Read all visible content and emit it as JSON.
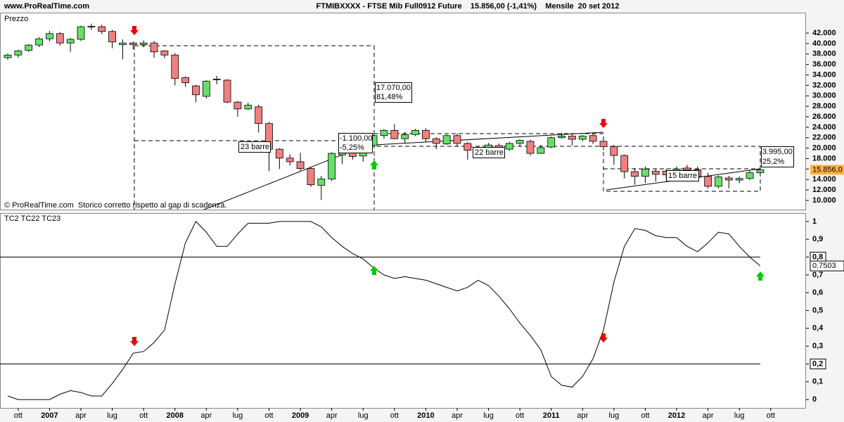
{
  "header": {
    "site": "www.ProRealTime.com",
    "title": "FTMIBXXXX - FTSE Mib Full0912 Future    15.856,00 (-1,41%)    Mensile  20 set 2012"
  },
  "chart_data": [
    {
      "type": "candlestick",
      "title": "Prezzo",
      "note": "© ProRealTime.com  Storico corretto rispetto al gap di scadenza.",
      "annotations": [
        "23 barre",
        "-1.100,00",
        "-5,25%",
        "17.070,00",
        "81,48%",
        "22 barre",
        "15 barre",
        "3.995,00",
        "25,2%"
      ],
      "x": [
        "2006-09",
        "2006-10",
        "2006-11",
        "2006-12",
        "2007-01",
        "2007-02",
        "2007-03",
        "2007-04",
        "2007-05",
        "2007-06",
        "2007-07",
        "2007-08",
        "2007-09",
        "2007-10",
        "2007-11",
        "2007-12",
        "2008-01",
        "2008-02",
        "2008-03",
        "2008-04",
        "2008-05",
        "2008-06",
        "2008-07",
        "2008-08",
        "2008-09",
        "2008-10",
        "2008-11",
        "2008-12",
        "2009-01",
        "2009-02",
        "2009-03",
        "2009-04",
        "2009-05",
        "2009-06",
        "2009-07",
        "2009-08",
        "2009-09",
        "2009-10",
        "2009-11",
        "2009-12",
        "2010-01",
        "2010-02",
        "2010-03",
        "2010-04",
        "2010-05",
        "2010-06",
        "2010-07",
        "2010-08",
        "2010-09",
        "2010-10",
        "2010-11",
        "2010-12",
        "2011-01",
        "2011-02",
        "2011-03",
        "2011-04",
        "2011-05",
        "2011-06",
        "2011-07",
        "2011-08",
        "2011-09",
        "2011-10",
        "2011-11",
        "2011-12",
        "2012-01",
        "2012-02",
        "2012-03",
        "2012-04",
        "2012-05",
        "2012-06",
        "2012-07",
        "2012-08",
        "2012-09"
      ],
      "open": [
        37300,
        37800,
        38700,
        39700,
        40900,
        41900,
        40100,
        40800,
        43200,
        43200,
        42300,
        39800,
        40100,
        39800,
        40100,
        38600,
        37800,
        33500,
        31900,
        29900,
        33100,
        33000,
        28800,
        27500,
        27900,
        24700,
        19800,
        18100,
        17400,
        16100,
        12900,
        14100,
        18700,
        19100,
        18500,
        20500,
        22400,
        23400,
        21800,
        22600,
        23400,
        21800,
        20800,
        22400,
        20900,
        19700,
        19700,
        20500,
        19800,
        20900,
        21300,
        19000,
        20200,
        22000,
        22300,
        21700,
        22400,
        21300,
        20300,
        18600,
        15500,
        14600,
        15600,
        15600,
        15000,
        16200,
        15900,
        14600,
        12700,
        14300,
        13900,
        14200,
        15300
      ],
      "high": [
        38100,
        38800,
        39900,
        41200,
        42400,
        42200,
        41100,
        43400,
        43800,
        43600,
        42600,
        40800,
        40400,
        40600,
        40500,
        38700,
        38200,
        33700,
        32100,
        33000,
        33800,
        33200,
        29000,
        28700,
        28300,
        25000,
        20000,
        18800,
        19100,
        16400,
        14700,
        19200,
        19800,
        19700,
        20800,
        22700,
        23600,
        24600,
        23100,
        23700,
        23800,
        22100,
        22600,
        22800,
        21200,
        20300,
        21000,
        20900,
        21200,
        21700,
        21600,
        20600,
        22200,
        22900,
        22600,
        22500,
        22700,
        21600,
        20600,
        18800,
        16200,
        16500,
        16100,
        16000,
        16500,
        16800,
        16500,
        15300,
        14800,
        14700,
        14600,
        15800,
        16300
      ],
      "low": [
        36900,
        37300,
        38400,
        39300,
        40400,
        39600,
        38400,
        40500,
        42600,
        41800,
        39100,
        37000,
        38900,
        39300,
        37300,
        37200,
        32000,
        31700,
        28800,
        29500,
        32200,
        28600,
        26000,
        27300,
        23000,
        15600,
        16000,
        16700,
        15700,
        12600,
        10100,
        13700,
        17000,
        17800,
        17400,
        20300,
        21800,
        21700,
        21000,
        22300,
        21100,
        19800,
        20600,
        20300,
        17800,
        18800,
        19400,
        19400,
        19500,
        20400,
        18600,
        18900,
        20000,
        21800,
        20500,
        21300,
        20800,
        19600,
        16800,
        14200,
        13000,
        13300,
        13600,
        14200,
        14600,
        15500,
        14300,
        12300,
        12300,
        12300,
        13300,
        13900,
        15000
      ],
      "close": [
        37800,
        38600,
        39700,
        40900,
        41900,
        40100,
        40800,
        43200,
        43300,
        42300,
        40300,
        40100,
        39800,
        40100,
        38400,
        37800,
        33300,
        32500,
        30200,
        32800,
        33200,
        28800,
        27500,
        28200,
        24700,
        19800,
        18100,
        17400,
        16100,
        13000,
        14100,
        19000,
        19300,
        18400,
        20500,
        22400,
        23400,
        21800,
        22600,
        23400,
        21800,
        20900,
        22400,
        20900,
        19600,
        19600,
        20600,
        19800,
        20900,
        21500,
        19000,
        20100,
        22000,
        22300,
        21700,
        22300,
        21300,
        20300,
        18600,
        15500,
        14600,
        16000,
        15000,
        14900,
        16000,
        15800,
        14600,
        12700,
        14500,
        13900,
        14200,
        15300,
        15856
      ],
      "up_color": "#66e066",
      "down_color": "#f08080",
      "ylim": [
        8250,
        45900
      ],
      "yticks": [
        {
          "value": 10000,
          "label": "10.000"
        },
        {
          "value": 12000,
          "label": "12.000"
        },
        {
          "value": 14000,
          "label": "14.000"
        },
        {
          "value": 16000,
          "label": "16.000"
        },
        {
          "value": 18000,
          "label": "18.000"
        },
        {
          "value": 20000,
          "label": "20.000"
        },
        {
          "value": 22000,
          "label": "22.000"
        },
        {
          "value": 24000,
          "label": "24.000"
        },
        {
          "value": 26000,
          "label": "26.000"
        },
        {
          "value": 28000,
          "label": "28.000"
        },
        {
          "value": 30000,
          "label": "30.000"
        },
        {
          "value": 32000,
          "label": "32.000"
        },
        {
          "value": 34000,
          "label": "34.000"
        },
        {
          "value": 36000,
          "label": "36.000"
        },
        {
          "value": 38000,
          "label": "38.000"
        },
        {
          "value": 40000,
          "label": "40.000"
        },
        {
          "value": 42000,
          "label": "42.000"
        }
      ],
      "last": {
        "value": 15856,
        "label": "15.856,0"
      }
    },
    {
      "type": "line",
      "title": "TC2 TC22 TC23",
      "color": "#000000",
      "x": [
        "2006-09",
        "2006-10",
        "2006-11",
        "2006-12",
        "2007-01",
        "2007-02",
        "2007-03",
        "2007-04",
        "2007-05",
        "2007-06",
        "2007-07",
        "2007-08",
        "2007-09",
        "2007-10",
        "2007-11",
        "2007-12",
        "2008-01",
        "2008-02",
        "2008-03",
        "2008-04",
        "2008-05",
        "2008-06",
        "2008-07",
        "2008-08",
        "2008-09",
        "2008-10",
        "2008-11",
        "2008-12",
        "2009-01",
        "2009-02",
        "2009-03",
        "2009-04",
        "2009-05",
        "2009-06",
        "2009-07",
        "2009-08",
        "2009-09",
        "2009-10",
        "2009-11",
        "2009-12",
        "2010-01",
        "2010-02",
        "2010-03",
        "2010-04",
        "2010-05",
        "2010-06",
        "2010-07",
        "2010-08",
        "2010-09",
        "2010-10",
        "2010-11",
        "2010-12",
        "2011-01",
        "2011-02",
        "2011-03",
        "2011-04",
        "2011-05",
        "2011-06",
        "2011-07",
        "2011-08",
        "2011-09",
        "2011-10",
        "2011-11",
        "2011-12",
        "2012-01",
        "2012-02",
        "2012-03",
        "2012-04",
        "2012-05",
        "2012-06",
        "2012-07",
        "2012-08",
        "2012-09"
      ],
      "values": [
        0.02,
        0,
        0,
        0,
        0,
        0.03,
        0.05,
        0.04,
        0.02,
        0.02,
        0.09,
        0.17,
        0.26,
        0.27,
        0.32,
        0.39,
        0.65,
        0.88,
        1,
        0.94,
        0.86,
        0.86,
        0.93,
        0.99,
        0.99,
        0.99,
        1,
        1,
        1,
        1,
        0.97,
        0.91,
        0.86,
        0.82,
        0.79,
        0.74,
        0.7,
        0.68,
        0.69,
        0.68,
        0.67,
        0.65,
        0.63,
        0.61,
        0.63,
        0.67,
        0.64,
        0.58,
        0.51,
        0.43,
        0.36,
        0.28,
        0.13,
        0.08,
        0.07,
        0.13,
        0.23,
        0.39,
        0.66,
        0.86,
        0.96,
        0.95,
        0.92,
        0.91,
        0.91,
        0.86,
        0.83,
        0.88,
        0.94,
        0.93,
        0.86,
        0.8,
        0.7503
      ],
      "ylim": [
        -0.047,
        1.043
      ],
      "yticks": [
        0,
        {
          "value": 0.1,
          "label": "0,1"
        },
        {
          "value": 0.2,
          "label": "0,2"
        },
        {
          "value": 0.3,
          "label": "0,3"
        },
        {
          "value": 0.4,
          "label": "0,4"
        },
        {
          "value": 0.5,
          "label": "0,5"
        },
        {
          "value": 0.6,
          "label": "0,6"
        },
        {
          "value": 0.7,
          "label": "0,7"
        },
        {
          "value": 0.8,
          "label": "0,8"
        },
        {
          "value": 0.9,
          "label": "0,9"
        },
        1
      ],
      "levels": [
        0.8,
        0.2
      ],
      "last": {
        "value": 0.7503,
        "label": "0,7503"
      },
      "xticks": [
        {
          "value": "2006-10",
          "label": "ott"
        },
        {
          "value": "2007-01",
          "label": "2007"
        },
        {
          "value": "2007-04",
          "label": "apr"
        },
        {
          "value": "2007-07",
          "label": "lug"
        },
        {
          "value": "2007-10",
          "label": "ott"
        },
        {
          "value": "2008-01",
          "label": "2008"
        },
        {
          "value": "2008-04",
          "label": "apr"
        },
        {
          "value": "2008-07",
          "label": "lug"
        },
        {
          "value": "2008-10",
          "label": "ott"
        },
        {
          "value": "2009-01",
          "label": "2009"
        },
        {
          "value": "2009-04",
          "label": "apr"
        },
        {
          "value": "2009-07",
          "label": "lug"
        },
        {
          "value": "2009-10",
          "label": "ott"
        },
        {
          "value": "2010-01",
          "label": "2010"
        },
        {
          "value": "2010-04",
          "label": "apr"
        },
        {
          "value": "2010-07",
          "label": "lug"
        },
        {
          "value": "2010-10",
          "label": "ott"
        },
        {
          "value": "2011-01",
          "label": "2011"
        },
        {
          "value": "2011-04",
          "label": "apr"
        },
        {
          "value": "2011-07",
          "label": "lug"
        },
        {
          "value": "2011-10",
          "label": "ott"
        },
        {
          "value": "2012-01",
          "label": "2012"
        },
        {
          "value": "2012-04",
          "label": "apr"
        },
        {
          "value": "2012-07",
          "label": "lug"
        },
        {
          "value": "2012-10",
          "label": "ott"
        }
      ]
    }
  ]
}
